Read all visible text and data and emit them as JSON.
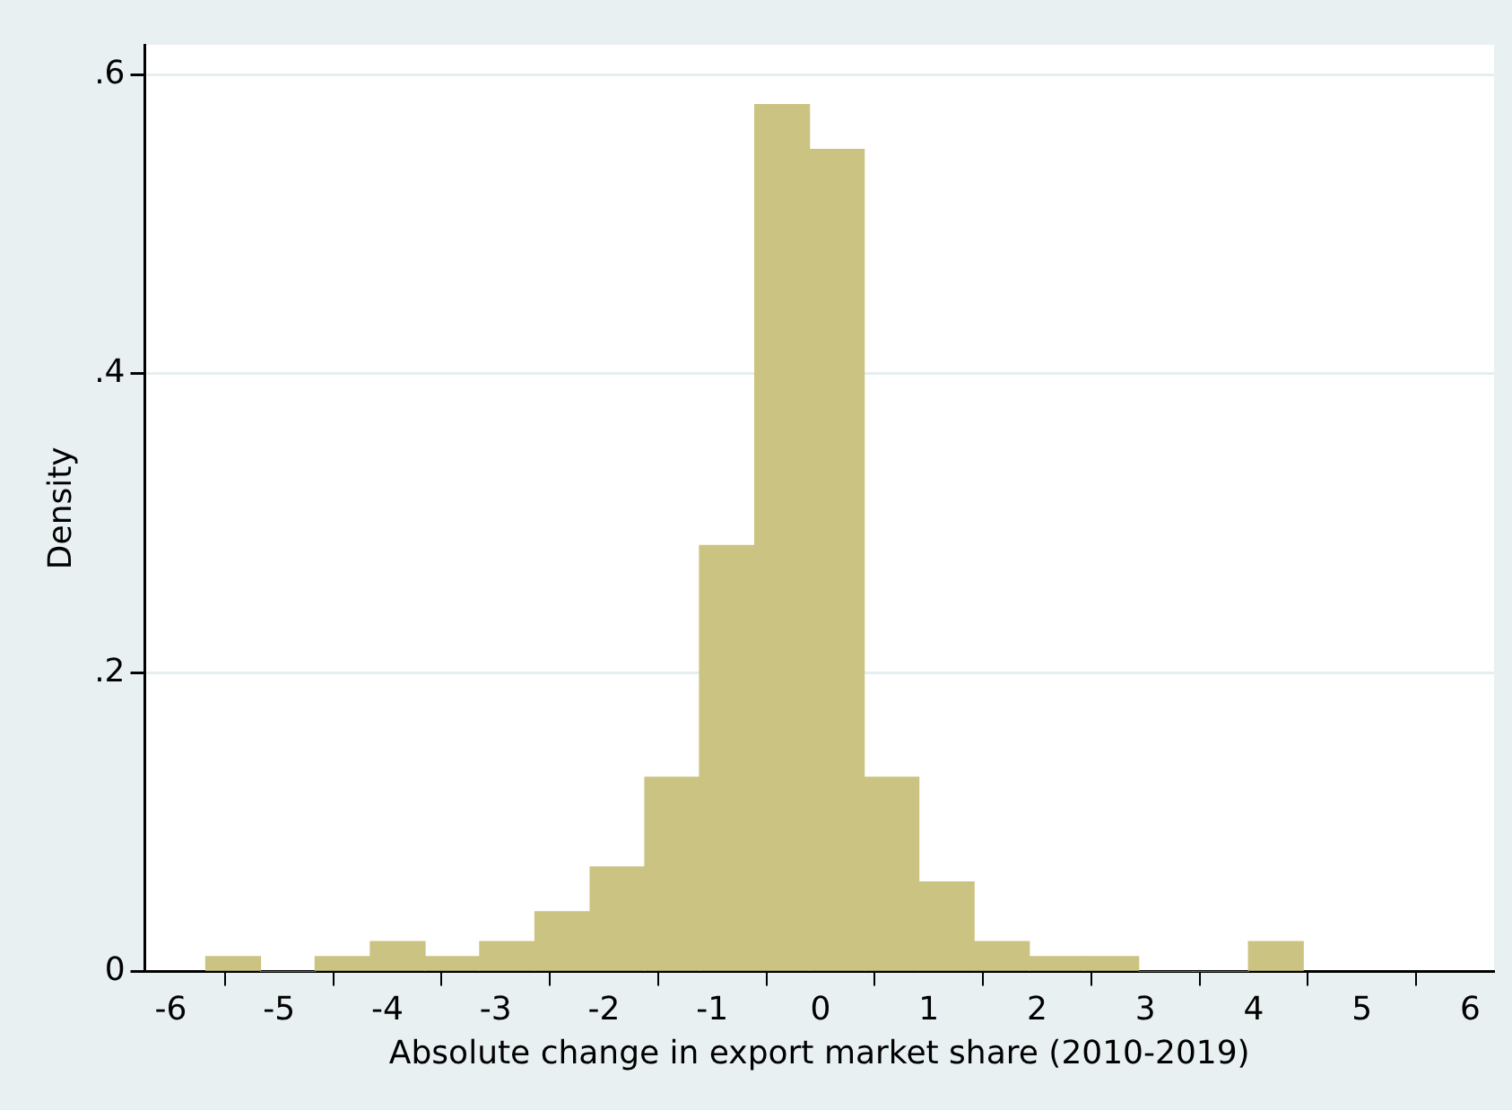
{
  "chart_data": {
    "type": "histogram",
    "xlabel": "Absolute change in export market share (2010-2019)",
    "ylabel": "Density",
    "bins": [
      -5.68,
      -5.17,
      -4.67,
      -4.16,
      -3.65,
      -3.15,
      -2.64,
      -2.13,
      -1.62,
      -1.12,
      -0.61,
      -0.1,
      0.4,
      0.91,
      1.42,
      1.93,
      2.43,
      2.94,
      3.45,
      3.95,
      4.46
    ],
    "values": [
      0.01,
      0,
      0.01,
      0.02,
      0.01,
      0.02,
      0.04,
      0.07,
      0.13,
      0.285,
      0.58,
      0.55,
      0.13,
      0.06,
      0.02,
      0.01,
      0.01,
      0,
      0,
      0.02
    ],
    "color": "#cbc382",
    "xlim": [
      -6.24,
      6.22
    ],
    "xticks": [
      -6,
      -5,
      -4,
      -3,
      -2,
      -1,
      0,
      1,
      2,
      3,
      4,
      5,
      6
    ],
    "ylim": [
      0,
      0.62
    ],
    "yticks": [
      0,
      {
        "value": 0.2,
        "label": ".2"
      },
      {
        "value": 0.4,
        "label": ".4"
      },
      {
        "value": 0.6,
        "label": ".6"
      }
    ],
    "grid": "y",
    "legend": false
  }
}
